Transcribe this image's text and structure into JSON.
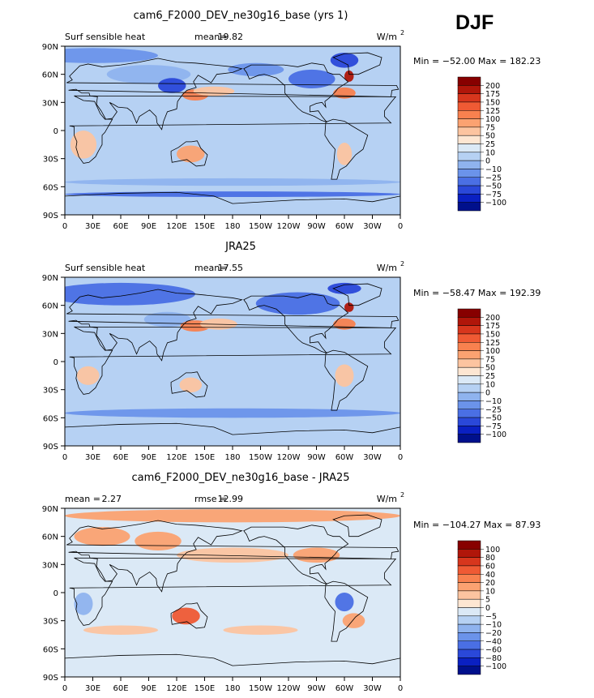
{
  "season": "DJF",
  "panels": [
    {
      "title": "cam6_F2000_DEV_ne30g16_base (yrs 1)",
      "left_label": "Surf sensible heat",
      "stat_label": "mean=",
      "stat_value": "19.82",
      "stat2_label": "",
      "stat2_value": "",
      "units": "W/m",
      "units_exp": "2",
      "minmax": "Min = −52.00 Max = 182.23",
      "colorbar_labels": [
        "200",
        "175",
        "150",
        "125",
        "100",
        "75",
        "50",
        "25",
        "10",
        "0",
        "−10",
        "−25",
        "−50",
        "−75",
        "−100"
      ],
      "colorbar_colors": [
        "#870000",
        "#b0160a",
        "#d7361d",
        "#ef5a34",
        "#f8814f",
        "#fba271",
        "#fcc4a0",
        "#fde6d2",
        "#dbe9f6",
        "#b6d1f3",
        "#8fb3ee",
        "#6b93ea",
        "#4a6fe4",
        "#2a48d9",
        "#0a20c2",
        "#00108c"
      ],
      "lat_labels": [
        "90N",
        "60N",
        "30N",
        "0",
        "30S",
        "60S",
        "90S"
      ],
      "lon_labels": [
        "0",
        "30E",
        "60E",
        "90E",
        "120E",
        "150E",
        "180",
        "150W",
        "120W",
        "90W",
        "60W",
        "30W",
        "0"
      ]
    },
    {
      "title": "JRA25",
      "left_label": "Surf sensible heat",
      "stat_label": "mean=",
      "stat_value": "17.55",
      "stat2_label": "",
      "stat2_value": "",
      "units": "W/m",
      "units_exp": "2",
      "minmax": "Min = −58.47 Max = 192.39",
      "colorbar_labels": [
        "200",
        "175",
        "150",
        "125",
        "100",
        "75",
        "50",
        "25",
        "10",
        "0",
        "−10",
        "−25",
        "−50",
        "−75",
        "−100"
      ],
      "colorbar_colors": [
        "#870000",
        "#b0160a",
        "#d7361d",
        "#ef5a34",
        "#f8814f",
        "#fba271",
        "#fcc4a0",
        "#fde6d2",
        "#dbe9f6",
        "#b6d1f3",
        "#8fb3ee",
        "#6b93ea",
        "#4a6fe4",
        "#2a48d9",
        "#0a20c2",
        "#00108c"
      ],
      "lat_labels": [
        "90N",
        "60N",
        "30N",
        "0",
        "30S",
        "60S",
        "90S"
      ],
      "lon_labels": [
        "0",
        "30E",
        "60E",
        "90E",
        "120E",
        "150E",
        "180",
        "150W",
        "120W",
        "90W",
        "60W",
        "30W",
        "0"
      ]
    },
    {
      "title": "cam6_F2000_DEV_ne30g16_base - JRA25",
      "left_label": "",
      "stat_label": "mean =",
      "stat_value": "2.27",
      "stat2_label": "rmse =",
      "stat2_value": "12.99",
      "units": "W/m",
      "units_exp": "2",
      "minmax": "Min = −104.27 Max =  87.93",
      "colorbar_labels": [
        "100",
        "80",
        "60",
        "40",
        "20",
        "10",
        "5",
        "0",
        "−5",
        "−10",
        "−20",
        "−40",
        "−60",
        "−80",
        "−100"
      ],
      "colorbar_colors": [
        "#870000",
        "#b0160a",
        "#d7361d",
        "#ef5a34",
        "#f8814f",
        "#fba271",
        "#fcc4a0",
        "#fde6d2",
        "#dbe9f6",
        "#b6d1f3",
        "#8fb3ee",
        "#6b93ea",
        "#4a6fe4",
        "#2a48d9",
        "#0a20c2",
        "#00108c"
      ],
      "lat_labels": [
        "90N",
        "60N",
        "30N",
        "0",
        "30S",
        "60S",
        "90S"
      ],
      "lon_labels": [
        "0",
        "30E",
        "60E",
        "90E",
        "120E",
        "150E",
        "180",
        "150W",
        "120W",
        "90W",
        "60W",
        "30W",
        "0"
      ]
    }
  ]
}
